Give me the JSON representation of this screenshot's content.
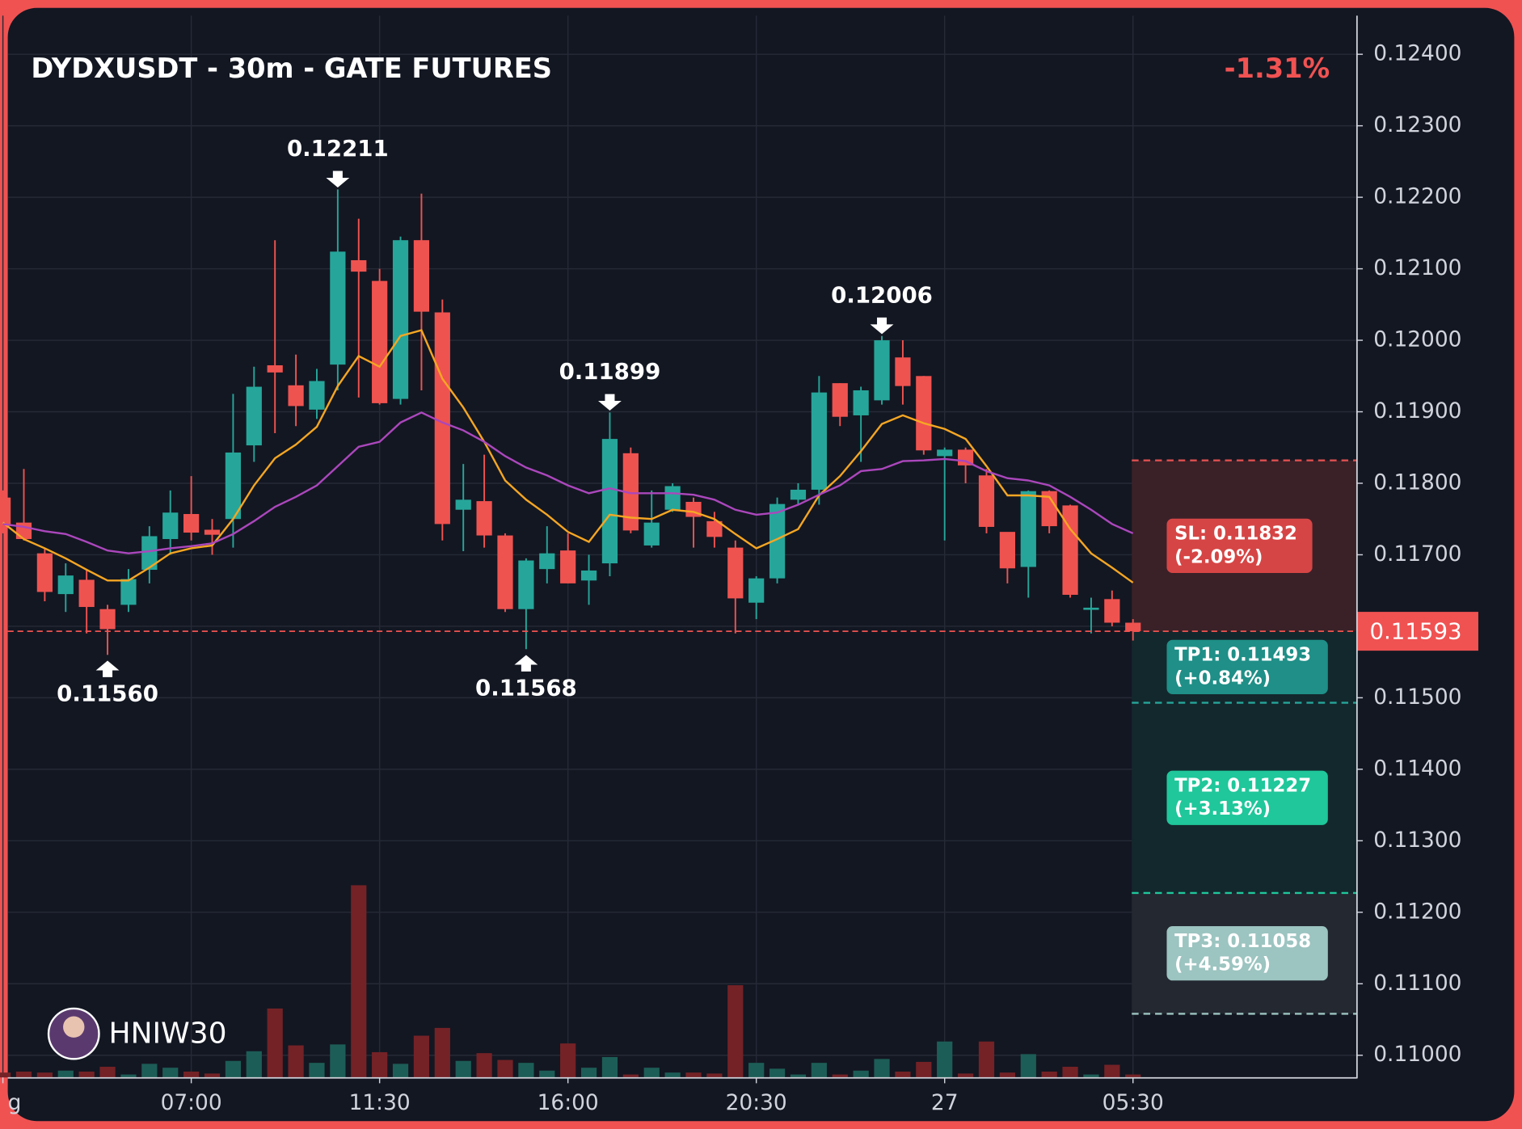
{
  "chart_data": {
    "type": "candlestick",
    "title": "DYDXUSDT - 30m - GATE FUTURES",
    "change": "-1.31%",
    "watermark": "HNIW30",
    "categories": [
      "g",
      null,
      null,
      null,
      null,
      null,
      null,
      null,
      null,
      "07:00",
      null,
      null,
      null,
      null,
      null,
      null,
      null,
      null,
      "11:30",
      null,
      null,
      null,
      null,
      null,
      null,
      null,
      null,
      "16:00",
      null,
      null,
      null,
      null,
      null,
      null,
      null,
      null,
      "20:30",
      null,
      null,
      null,
      null,
      null,
      null,
      null,
      null,
      "27",
      null,
      null,
      null,
      null,
      null,
      null,
      null,
      null,
      "05:30"
    ],
    "open": [
      0.1178,
      0.11745,
      0.11702,
      0.11645,
      0.11665,
      0.11624,
      0.1163,
      0.11679,
      0.11722,
      0.11757,
      0.11735,
      0.1175,
      0.11853,
      0.11965,
      0.11937,
      0.11903,
      0.11966,
      0.12112,
      0.12083,
      0.11918,
      0.1214,
      0.12039,
      0.11763,
      0.11775,
      0.11727,
      0.11624,
      0.1168,
      0.11706,
      0.11664,
      0.11688,
      0.11842,
      0.11713,
      0.11763,
      0.11774,
      0.11747,
      0.1171,
      0.11633,
      0.11667,
      0.11777,
      0.11791,
      0.1194,
      0.11895,
      0.11916,
      0.11976,
      0.1195,
      0.11838,
      0.11847,
      0.11811,
      0.11732,
      0.11683,
      0.11789,
      0.11769,
      0.11623,
      0.11638,
      0.11605
    ],
    "high": [
      0.1179,
      0.1182,
      0.11709,
      0.11688,
      0.1168,
      0.1163,
      0.1168,
      0.1174,
      0.1179,
      0.1181,
      0.1175,
      0.11925,
      0.11963,
      0.1214,
      0.1198,
      0.1196,
      0.12211,
      0.1217,
      0.121,
      0.12145,
      0.12205,
      0.12057,
      0.11827,
      0.1184,
      0.1173,
      0.11695,
      0.1174,
      0.1173,
      0.117,
      0.11899,
      0.1185,
      0.1179,
      0.118,
      0.1178,
      0.1176,
      0.1172,
      0.1167,
      0.1178,
      0.118,
      0.1195,
      0.1194,
      0.11935,
      0.12006,
      0.12,
      0.1195,
      0.1185,
      0.1185,
      0.1182,
      0.1173,
      0.1179,
      0.1179,
      0.1177,
      0.1164,
      0.1165,
      0.1161
    ],
    "low": [
      0.1173,
      0.1172,
      0.11635,
      0.1162,
      0.1159,
      0.1156,
      0.1162,
      0.1166,
      0.117,
      0.1172,
      0.117,
      0.1171,
      0.1183,
      0.1187,
      0.1188,
      0.1189,
      0.1193,
      0.1192,
      0.1191,
      0.1191,
      0.1193,
      0.1172,
      0.11705,
      0.1171,
      0.1162,
      0.11568,
      0.1166,
      0.1166,
      0.1163,
      0.1167,
      0.1173,
      0.1171,
      0.1176,
      0.1171,
      0.1171,
      0.1159,
      0.1161,
      0.1166,
      0.1177,
      0.1177,
      0.1188,
      0.1183,
      0.1191,
      0.1191,
      0.1184,
      0.1172,
      0.118,
      0.1173,
      0.1166,
      0.1164,
      0.1173,
      0.1164,
      0.1159,
      0.116,
      0.1158
    ],
    "close": [
      0.1174,
      0.11722,
      0.11648,
      0.11671,
      0.11627,
      0.11596,
      0.11666,
      0.11726,
      0.11759,
      0.11731,
      0.11728,
      0.11843,
      0.11935,
      0.11955,
      0.11908,
      0.11943,
      0.12124,
      0.12096,
      0.11912,
      0.1214,
      0.1204,
      0.11743,
      0.11777,
      0.11727,
      0.11624,
      0.11692,
      0.11702,
      0.1166,
      0.11678,
      0.11862,
      0.11734,
      0.11745,
      0.11796,
      0.11753,
      0.11725,
      0.11639,
      0.11667,
      0.11771,
      0.11791,
      0.11927,
      0.11893,
      0.1193,
      0.12,
      0.11936,
      0.11846,
      0.11847,
      0.11825,
      0.11739,
      0.11681,
      0.11789,
      0.1174,
      0.11644,
      0.11626,
      0.11605,
      0.11593
    ],
    "volume": [
      5,
      6,
      5,
      7,
      6,
      11,
      3,
      14,
      10,
      6,
      4,
      17,
      27,
      71,
      33,
      15,
      34,
      198,
      26,
      14,
      43,
      51,
      17,
      25,
      18,
      15,
      7,
      35,
      10,
      21,
      3,
      10,
      5,
      5,
      4,
      95,
      15,
      9,
      3,
      15,
      3,
      7,
      19,
      6,
      16,
      37,
      4,
      37,
      5,
      24,
      6,
      11,
      3,
      13,
      3
    ],
    "up_color": "#26a69a",
    "down_color": "#ef5350",
    "up_volume_color": "#1d5d57",
    "down_volume_color": "#742226",
    "ma": [
      {
        "color": "#f5a623",
        "values": [
          0.11745,
          0.11722,
          0.11709,
          0.11695,
          0.11679,
          0.11664,
          0.11664,
          0.11682,
          0.11702,
          0.11709,
          0.11713,
          0.1175,
          0.11797,
          0.11835,
          0.11854,
          0.11879,
          0.11936,
          0.11978,
          0.11963,
          0.12006,
          0.12014,
          0.11946,
          0.11906,
          0.11858,
          0.11804,
          0.11777,
          0.11756,
          0.11732,
          0.11718,
          0.11756,
          0.11752,
          0.1175,
          0.11763,
          0.1176,
          0.1175,
          0.11729,
          0.11709,
          0.11722,
          0.11736,
          0.11783,
          0.1181,
          0.11845,
          0.11883,
          0.11895,
          0.11884,
          0.11876,
          0.11862,
          0.11824,
          0.11783,
          0.11783,
          0.11781,
          0.11736,
          0.11702,
          0.11682,
          0.11661
        ]
      },
      {
        "color": "#ab47bc",
        "values": [
          0.11743,
          0.11739,
          0.11733,
          0.11729,
          0.11718,
          0.11706,
          0.11702,
          0.11705,
          0.11709,
          0.11712,
          0.11716,
          0.11729,
          0.11747,
          0.11767,
          0.11781,
          0.11797,
          0.11824,
          0.11851,
          0.11858,
          0.11885,
          0.11899,
          0.11885,
          0.11874,
          0.11858,
          0.11838,
          0.11822,
          0.11811,
          0.11797,
          0.11786,
          0.11793,
          0.11786,
          0.11786,
          0.11786,
          0.11784,
          0.11777,
          0.11763,
          0.11756,
          0.11759,
          0.1177,
          0.11784,
          0.11797,
          0.11817,
          0.1182,
          0.11831,
          0.11832,
          0.11834,
          0.11831,
          0.11817,
          0.11807,
          0.11804,
          0.11797,
          0.11781,
          0.11763,
          0.11743,
          0.1173
        ]
      }
    ],
    "annotations": [
      {
        "candle": 16,
        "text": "0.12211",
        "value": 0.12211,
        "side": "above"
      },
      {
        "candle": 5,
        "text": "0.11560",
        "value": 0.1156,
        "side": "below"
      },
      {
        "candle": 25,
        "text": "0.11568",
        "value": 0.11568,
        "side": "below"
      },
      {
        "candle": 29,
        "text": "0.11899",
        "value": 0.11899,
        "side": "above"
      },
      {
        "candle": 42,
        "text": "0.12006",
        "value": 0.12006,
        "side": "above"
      }
    ],
    "last_price": 0.11593,
    "levels": [
      {
        "label": "SL: 0.11832",
        "note": "(-2.09%)",
        "value": 0.11832,
        "color": "#d64545",
        "line_color": "#e05050",
        "zone_color": "#3a2128"
      },
      {
        "label": "TP1: 0.11493",
        "note": "(+0.84%)",
        "value": 0.11493,
        "color": "#1f8f87",
        "line_color": "#26a69a",
        "zone_color": "#13282d"
      },
      {
        "label": "TP2: 0.11227",
        "note": "(+3.13%)",
        "value": 0.11227,
        "color": "#1fc79a",
        "line_color": "#1fc79a",
        "zone_color": "#13282d"
      },
      {
        "label": "TP3: 0.11058",
        "note": "(+4.59%)",
        "value": 0.11058,
        "color": "#9cc4c0",
        "line_color": "#9cc4c0",
        "zone_color": "#232831"
      }
    ],
    "ylim": [
      0.10969,
      0.12454
    ],
    "yticks": [
      {
        "value": 0.11,
        "label": "0.11000"
      },
      {
        "value": 0.111,
        "label": "0.11100"
      },
      {
        "value": 0.112,
        "label": "0.11200"
      },
      {
        "value": 0.113,
        "label": "0.11300"
      },
      {
        "value": 0.114,
        "label": "0.11400"
      },
      {
        "value": 0.115,
        "label": "0.11500"
      },
      {
        "value": 0.116,
        "label": "0.11600"
      },
      {
        "value": 0.117,
        "label": "0.11700"
      },
      {
        "value": 0.118,
        "label": "0.11800"
      },
      {
        "value": 0.119,
        "label": "0.11900"
      },
      {
        "value": 0.12,
        "label": "0.12000"
      },
      {
        "value": 0.121,
        "label": "0.12100"
      },
      {
        "value": 0.122,
        "label": "0.12200"
      },
      {
        "value": 0.123,
        "label": "0.12300"
      },
      {
        "value": 0.124,
        "label": "0.12400"
      }
    ],
    "grid": true
  }
}
